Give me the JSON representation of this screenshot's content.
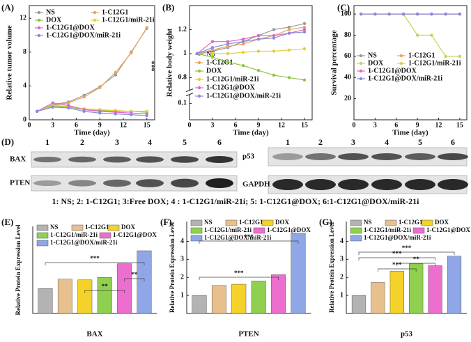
{
  "chart_data": [
    {
      "type": "line",
      "panel_label": "(A)",
      "xlabel": "Time (day)",
      "ylabel": "Relative tumor volume",
      "x": [
        1,
        3,
        5,
        7,
        9,
        11,
        13,
        15
      ],
      "xlim": [
        0,
        16
      ],
      "xticks": [
        0,
        3,
        6,
        9,
        12,
        15
      ],
      "ylim": [
        0,
        13.5
      ],
      "yticks": [
        0,
        4,
        8,
        12
      ],
      "annotations": [
        "***"
      ],
      "series": [
        {
          "name": "NS",
          "color": "#9a9a9a",
          "values": [
            1.0,
            1.8,
            2.1,
            2.9,
            3.9,
            5.3,
            8.0,
            10.8
          ]
        },
        {
          "name": "1-C12G1",
          "color": "#e8a45a",
          "values": [
            1.0,
            1.7,
            2.0,
            2.7,
            3.8,
            5.6,
            7.9,
            10.9
          ]
        },
        {
          "name": "DOX",
          "color": "#8cc63f",
          "values": [
            1.0,
            1.6,
            1.5,
            1.2,
            1.1,
            1.0,
            1.0,
            0.9
          ]
        },
        {
          "name": "1-C12G1/miR-21i",
          "color": "#e6cf2e",
          "values": [
            1.0,
            1.7,
            1.6,
            1.3,
            1.2,
            1.1,
            1.0,
            1.0
          ]
        },
        {
          "name": "1-C12G1@DOX",
          "color": "#e066c6",
          "values": [
            1.0,
            2.0,
            1.7,
            1.2,
            1.0,
            0.9,
            0.8,
            0.7
          ]
        },
        {
          "name": "1-C12G1@DOX/miR-21i",
          "color": "#8a8ae0",
          "values": [
            1.0,
            1.5,
            1.4,
            1.0,
            0.8,
            0.7,
            0.6,
            0.5
          ]
        }
      ]
    },
    {
      "type": "line",
      "panel_label": "(B)",
      "xlabel": "Time (day)",
      "ylabel": "Relative body weight",
      "x": [
        1,
        3,
        5,
        7,
        9,
        11,
        13,
        15
      ],
      "xlim": [
        0,
        16
      ],
      "xticks": [
        0,
        3,
        6,
        9,
        12,
        15
      ],
      "ylim": [
        0,
        1.4
      ],
      "ybreak": [
        0.15,
        0.7
      ],
      "yticks": [
        0.1,
        0.8,
        1.0,
        1.2
      ],
      "series": [
        {
          "name": "NS",
          "color": "#9a9a9a",
          "values": [
            1.0,
            1.02,
            1.05,
            1.1,
            1.15,
            1.2,
            1.22,
            1.25
          ]
        },
        {
          "name": "1-C12G1",
          "color": "#e8a45a",
          "values": [
            1.0,
            1.03,
            1.06,
            1.08,
            1.12,
            1.15,
            1.2,
            1.22
          ]
        },
        {
          "name": "DOX",
          "color": "#8cc63f",
          "values": [
            1.0,
            0.97,
            0.93,
            0.9,
            0.86,
            0.82,
            0.8,
            0.78
          ]
        },
        {
          "name": "1-C12G1/miR-21i",
          "color": "#e6cf2e",
          "values": [
            1.0,
            1.0,
            1.0,
            1.01,
            1.02,
            1.02,
            1.03,
            1.04
          ]
        },
        {
          "name": "1-C12G1@DOX",
          "color": "#e066c6",
          "values": [
            1.0,
            1.1,
            1.1,
            1.12,
            1.15,
            1.15,
            1.17,
            1.2
          ]
        },
        {
          "name": "1-C12G1@DOX/miR-21i",
          "color": "#8a8ae0",
          "values": [
            1.0,
            1.05,
            1.08,
            1.1,
            1.12,
            1.13,
            1.17,
            1.18
          ]
        }
      ]
    },
    {
      "type": "line",
      "panel_label": "(C)",
      "xlabel": "Time (day)",
      "ylabel": "Survival percentage",
      "x": [
        1,
        3,
        5,
        7,
        9,
        11,
        13,
        15
      ],
      "xlim": [
        0,
        16
      ],
      "xticks": [
        0,
        3,
        6,
        9,
        12,
        15
      ],
      "ylim": [
        0,
        108
      ],
      "yticks": [
        20,
        40,
        60,
        80,
        100
      ],
      "series": [
        {
          "name": "NS",
          "color": "#9a9a9a",
          "values": [
            100,
            100,
            100,
            100,
            100,
            100,
            100,
            100
          ]
        },
        {
          "name": "1-C12G1",
          "color": "#e8a45a",
          "values": [
            100,
            100,
            100,
            100,
            100,
            100,
            100,
            100
          ]
        },
        {
          "name": "DOX",
          "color": "#b8d860",
          "values": [
            100,
            100,
            100,
            100,
            80,
            80,
            60,
            60
          ]
        },
        {
          "name": "1-C12G1/miR-21i",
          "color": "#e6cf2e",
          "values": [
            100,
            100,
            100,
            100,
            100,
            100,
            100,
            100
          ]
        },
        {
          "name": "1-C12G1@DOX",
          "color": "#e066c6",
          "values": [
            100,
            100,
            100,
            100,
            100,
            100,
            100,
            100
          ]
        },
        {
          "name": "1-C12G1@DOX/miR-21i",
          "color": "#8a8ae0",
          "values": [
            100,
            100,
            100,
            100,
            100,
            100,
            100,
            100
          ]
        }
      ]
    },
    {
      "type": "bar",
      "panel_label": "(E)",
      "xlabel": "BAX",
      "ylabel": "Relative Protein Expression Level",
      "categories": [
        "NS",
        "1-C12G1",
        "DOX",
        "1-C12G1/miR-21i",
        "1-C12G1@DOX",
        "1-C12G1@DOX/miR-21i"
      ],
      "colors": [
        "#b3b3b3",
        "#e8c08e",
        "#f5d22a",
        "#8fd14f",
        "#ec6fcf",
        "#8fa7e6"
      ],
      "values": [
        1.0,
        1.38,
        1.35,
        1.45,
        2.0,
        2.52
      ],
      "ylim": [
        0,
        3.5
      ],
      "annotations": [
        "***",
        "**",
        "**"
      ]
    },
    {
      "type": "bar",
      "panel_label": "(F)",
      "xlabel": "PTEN",
      "ylabel": "Relative Protein Expression Level",
      "categories": [
        "NS",
        "1-C12G1",
        "DOX",
        "1-C12G1/miR-21i",
        "1-C12G1@DOX",
        "1-C12G1@DOX/miR-21i"
      ],
      "colors": [
        "#b3b3b3",
        "#e8c08e",
        "#f5d22a",
        "#8fd14f",
        "#ec6fcf",
        "#8fa7e6"
      ],
      "values": [
        1.0,
        1.55,
        1.62,
        1.8,
        2.15,
        4.45
      ],
      "ylim": [
        0,
        5.1
      ],
      "yticks": [
        1,
        2,
        3,
        4
      ],
      "annotations": [
        "***",
        "***"
      ]
    },
    {
      "type": "bar",
      "panel_label": "(G)",
      "xlabel": "p53",
      "ylabel": "Relative Protein Expression Level",
      "categories": [
        "NS",
        "1-C12G1",
        "DOX",
        "1-C12G1/miR-21i",
        "1-C12G1@DOX",
        "1-C12G1@DOX/miR-21i"
      ],
      "colors": [
        "#b3b3b3",
        "#e8c08e",
        "#f5d22a",
        "#8fd14f",
        "#ec6fcf",
        "#8fa7e6"
      ],
      "values": [
        1.0,
        1.72,
        2.35,
        2.75,
        2.65,
        3.18
      ],
      "ylim": [
        0,
        5.1
      ],
      "yticks": [
        1,
        2,
        3,
        4
      ],
      "annotations": [
        "***",
        "***",
        "**",
        "***"
      ]
    }
  ],
  "blot": {
    "panel_label": "(D)",
    "lanes": [
      "1",
      "2",
      "3",
      "4",
      "5",
      "6"
    ],
    "left_rows": [
      "BAX",
      "PTEN"
    ],
    "right_rows": [
      "p53",
      "GAPDH"
    ],
    "caption": "1: NS;  2: 1-C12G1;  3:Free DOX;  4 : 1-C12G1/miR-21i;  5: 1-C12G1@DOX;  6:1-C12G1@DOX/miR-21i"
  }
}
